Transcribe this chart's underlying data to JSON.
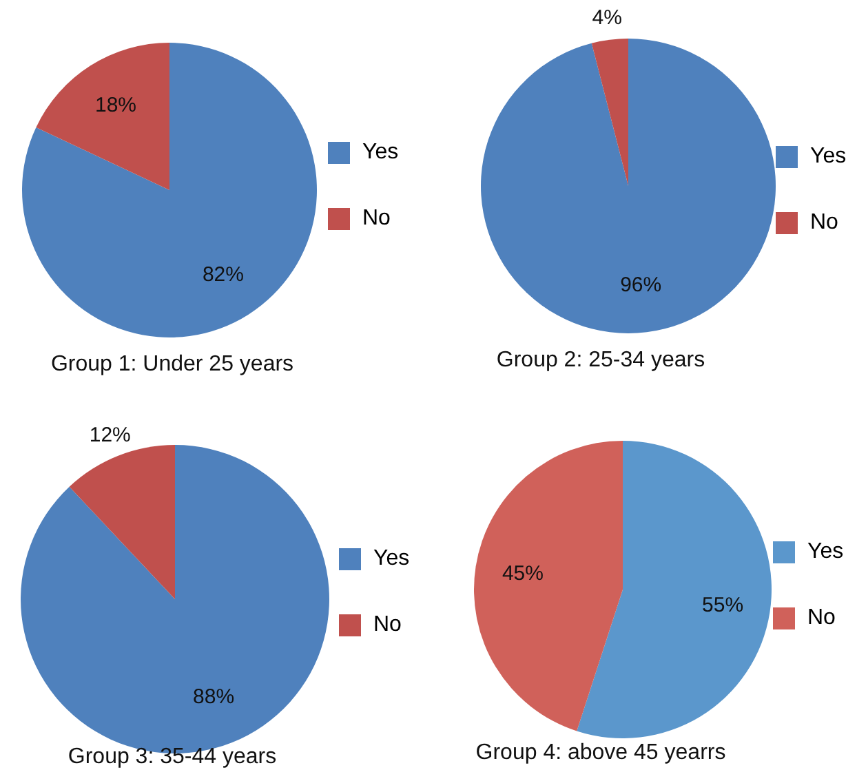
{
  "chart_data": [
    {
      "type": "pie",
      "title": "Group 1: Under 25 years",
      "categories": [
        "Yes",
        "No"
      ],
      "values": [
        82,
        18
      ],
      "value_labels": [
        "82%",
        "18%"
      ],
      "colors": [
        "#4f81bd",
        "#c0504d"
      ],
      "legend": "right"
    },
    {
      "type": "pie",
      "title": "Group 2: 25-34 years",
      "categories": [
        "Yes",
        "No"
      ],
      "values": [
        96,
        4
      ],
      "value_labels": [
        "96%",
        "4%"
      ],
      "colors": [
        "#4f81bd",
        "#c0504d"
      ],
      "legend": "right"
    },
    {
      "type": "pie",
      "title": "Group 3: 35-44 years",
      "categories": [
        "Yes",
        "No"
      ],
      "values": [
        88,
        12
      ],
      "value_labels": [
        "88%",
        "12%"
      ],
      "colors": [
        "#4f81bd",
        "#c0504d"
      ],
      "legend": "right"
    },
    {
      "type": "pie",
      "title": "Group 4: above 45 yearrs",
      "categories": [
        "Yes",
        "No"
      ],
      "values": [
        55,
        45
      ],
      "value_labels": [
        "55%",
        "45%"
      ],
      "colors": [
        "#5b97cc",
        "#d0615a"
      ],
      "legend": "right"
    }
  ]
}
